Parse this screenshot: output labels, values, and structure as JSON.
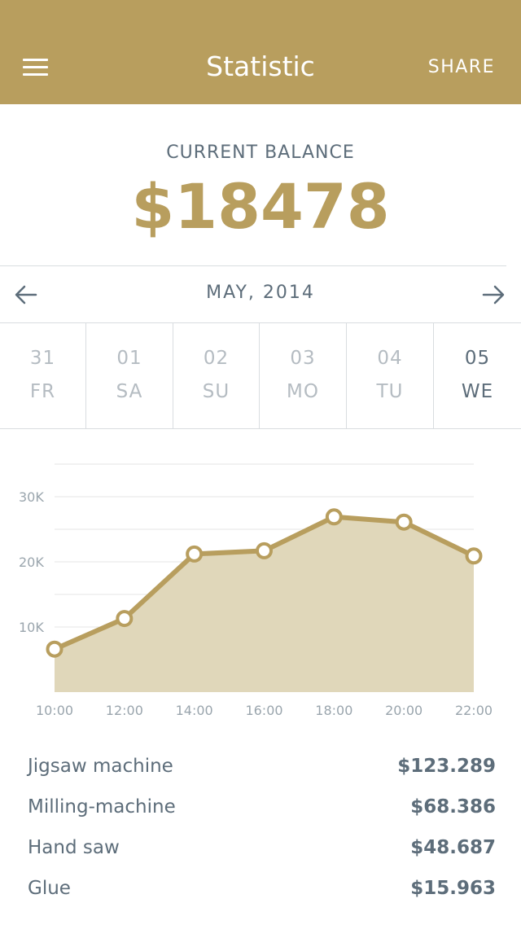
{
  "header": {
    "title": "Statistic",
    "share_label": "SHARE",
    "menu_icon": "hamburger-menu-icon",
    "bg_color": "#b89e5e"
  },
  "balance": {
    "label": "CURRENT BALANCE",
    "value": "$18478"
  },
  "month_nav": {
    "label": "MAY, 2014",
    "prev_icon": "arrow-left-icon",
    "next_icon": "arrow-right-icon"
  },
  "days": [
    {
      "num": "31",
      "weekday": "FR",
      "active": false
    },
    {
      "num": "01",
      "weekday": "SA",
      "active": false
    },
    {
      "num": "02",
      "weekday": "SU",
      "active": false
    },
    {
      "num": "03",
      "weekday": "MO",
      "active": false
    },
    {
      "num": "04",
      "weekday": "TU",
      "active": false
    },
    {
      "num": "05",
      "weekday": "WE",
      "active": true
    }
  ],
  "chart_data": {
    "type": "area",
    "x": [
      "10:00",
      "12:00",
      "14:00",
      "16:00",
      "18:00",
      "20:00",
      "22:00"
    ],
    "values": [
      6600,
      11300,
      21200,
      21700,
      26900,
      26100,
      20900
    ],
    "ylim": [
      0,
      35000
    ],
    "y_ticks": [
      10000,
      20000,
      30000
    ],
    "y_tick_labels": [
      "10K",
      "20K",
      "30K"
    ],
    "grid": true,
    "colors": {
      "line": "#b89e5e",
      "fill": "#e0d7ba",
      "marker_fill": "#ffffff",
      "grid": "#e6e6e6",
      "tick": "#9aa5ad"
    }
  },
  "items": [
    {
      "name": "Jigsaw machine",
      "amount": "$123.289"
    },
    {
      "name": "Milling-machine",
      "amount": "$68.386"
    },
    {
      "name": "Hand saw",
      "amount": "$48.687"
    },
    {
      "name": "Glue",
      "amount": "$15.963"
    }
  ]
}
